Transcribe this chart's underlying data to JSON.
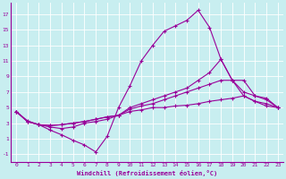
{
  "xlabel": "Windchill (Refroidissement éolien,°C)",
  "background_color": "#c8eef0",
  "line_color": "#990099",
  "xlim": [
    -0.5,
    23.5
  ],
  "ylim": [
    -2,
    18.5
  ],
  "xticks": [
    0,
    1,
    2,
    3,
    4,
    5,
    6,
    7,
    8,
    9,
    10,
    11,
    12,
    13,
    14,
    15,
    16,
    17,
    18,
    19,
    20,
    21,
    22,
    23
  ],
  "yticks": [
    -1,
    1,
    3,
    5,
    7,
    9,
    11,
    13,
    15,
    17
  ],
  "lines": [
    {
      "x": [
        0,
        1,
        2,
        3,
        4,
        5,
        6,
        7,
        8,
        9,
        10,
        11,
        12,
        13,
        14,
        15,
        16,
        17,
        18,
        19,
        20,
        21,
        22,
        23
      ],
      "y": [
        4.5,
        3.3,
        2.8,
        2.1,
        1.5,
        0.8,
        0.2,
        -0.7,
        1.3,
        5.0,
        7.8,
        11.0,
        13.0,
        14.8,
        15.5,
        16.2,
        17.5,
        15.3,
        11.2,
        8.5,
        6.5,
        5.8,
        5.2,
        5.0
      ]
    },
    {
      "x": [
        0,
        1,
        2,
        3,
        4,
        5,
        6,
        7,
        8,
        9,
        10,
        11,
        12,
        13,
        14,
        15,
        16,
        17,
        18,
        19,
        20,
        21,
        22,
        23
      ],
      "y": [
        4.5,
        3.2,
        2.8,
        2.5,
        2.3,
        2.5,
        3.0,
        3.2,
        3.5,
        4.0,
        5.0,
        5.5,
        6.0,
        6.5,
        7.0,
        7.5,
        8.5,
        9.5,
        11.2,
        8.5,
        7.0,
        6.5,
        6.2,
        5.0
      ]
    },
    {
      "x": [
        0,
        1,
        2,
        3,
        4,
        5,
        6,
        7,
        8,
        9,
        10,
        11,
        12,
        13,
        14,
        15,
        16,
        17,
        18,
        19,
        20,
        21,
        22,
        23
      ],
      "y": [
        4.5,
        3.2,
        2.8,
        2.7,
        2.8,
        3.0,
        3.2,
        3.5,
        3.8,
        4.0,
        4.8,
        5.2,
        5.5,
        6.0,
        6.5,
        7.0,
        7.5,
        8.0,
        8.5,
        8.5,
        8.5,
        6.5,
        6.0,
        5.0
      ]
    },
    {
      "x": [
        0,
        1,
        2,
        3,
        4,
        5,
        6,
        7,
        8,
        9,
        10,
        11,
        12,
        13,
        14,
        15,
        16,
        17,
        18,
        19,
        20,
        21,
        22,
        23
      ],
      "y": [
        4.5,
        3.2,
        2.8,
        2.7,
        2.8,
        3.0,
        3.2,
        3.5,
        3.8,
        4.0,
        4.5,
        4.7,
        5.0,
        5.0,
        5.2,
        5.3,
        5.5,
        5.8,
        6.0,
        6.2,
        6.5,
        5.8,
        5.5,
        5.0
      ]
    }
  ]
}
